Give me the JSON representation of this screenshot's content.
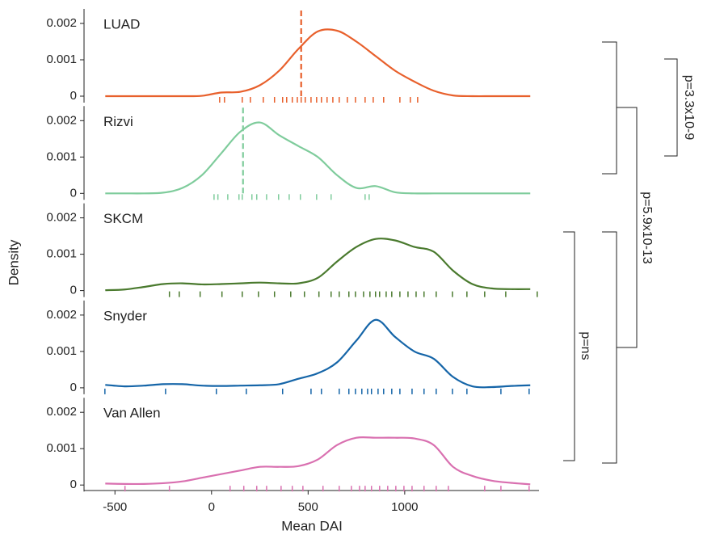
{
  "chart_data": {
    "type": "density",
    "xlabel": "Mean DAI",
    "ylabel": "Density",
    "x": [
      -550,
      -450,
      -350,
      -250,
      -150,
      -50,
      50,
      150,
      250,
      350,
      450,
      550,
      650,
      750,
      850,
      950,
      1050,
      1150,
      1250,
      1350,
      1450,
      1550,
      1650
    ],
    "xlim": [
      -660,
      1695
    ],
    "xticks": [
      -500,
      0,
      500,
      1000
    ],
    "ylim": [
      0,
      0.0024
    ],
    "yticks": [
      0,
      0.001,
      0.002
    ],
    "series": [
      {
        "name": "LUAD",
        "color": "#e8602c",
        "values": [
          0,
          0,
          0,
          0,
          0,
          1e-05,
          0.0001,
          0.00012,
          0.0003,
          0.0007,
          0.0013,
          0.00178,
          0.0018,
          0.0015,
          0.0011,
          0.0007,
          0.0004,
          0.00015,
          2e-05,
          0,
          0,
          0,
          0
        ],
        "median": 464,
        "rug": [
          42,
          67,
          159,
          201,
          268,
          326,
          368,
          389,
          418,
          444,
          464,
          485,
          515,
          544,
          569,
          598,
          628,
          661,
          703,
          745,
          795,
          837,
          891,
          975,
          1029,
          1067
        ]
      },
      {
        "name": "Rizvi",
        "color": "#7fcc9c",
        "values": [
          0,
          0,
          0,
          2e-05,
          0.00015,
          0.0005,
          0.0011,
          0.0017,
          0.00195,
          0.0016,
          0.0013,
          0.001,
          0.0005,
          0.00015,
          0.0002,
          3e-05,
          0,
          0,
          0,
          0,
          0,
          0,
          0
        ],
        "median": 163,
        "rug": [
          13,
          33,
          84,
          142,
          159,
          209,
          234,
          285,
          347,
          402,
          460,
          544,
          619,
          795,
          816
        ]
      },
      {
        "name": "SKCM",
        "color": "#4a7a2e",
        "values": [
          1e-05,
          3e-05,
          0.0001,
          0.00018,
          0.0002,
          0.00017,
          0.00018,
          0.0002,
          0.00022,
          0.0002,
          0.0002,
          0.00035,
          0.0008,
          0.0012,
          0.00142,
          0.00138,
          0.0012,
          0.00107,
          0.00055,
          0.00018,
          6e-05,
          4e-05,
          4e-05
        ],
        "rug": [
          -218,
          -167,
          -59,
          54,
          159,
          243,
          326,
          410,
          481,
          556,
          619,
          661,
          711,
          745,
          787,
          820,
          849,
          870,
          904,
          933,
          975,
          1017,
          1059,
          1100,
          1163,
          1247,
          1322,
          1414,
          1523,
          1686
        ]
      },
      {
        "name": "Snyder",
        "color": "#1565a8",
        "values": [
          8e-05,
          4e-05,
          6e-05,
          0.0001,
          0.0001,
          6e-05,
          5e-05,
          6e-05,
          7e-05,
          0.0001,
          0.00025,
          0.0004,
          0.0007,
          0.0013,
          0.00187,
          0.0014,
          0.001,
          0.0008,
          0.0003,
          4e-05,
          2e-05,
          5e-05,
          7e-05
        ],
        "rug": [
          -552,
          -238,
          25,
          180,
          368,
          515,
          569,
          661,
          711,
          745,
          778,
          808,
          828,
          862,
          891,
          933,
          975,
          1038,
          1100,
          1163,
          1247,
          1322,
          1498,
          1644
        ]
      },
      {
        "name": "Van Allen",
        "color": "#d970b0",
        "values": [
          4e-05,
          3e-05,
          3e-05,
          5e-05,
          0.0001,
          0.0002,
          0.0003,
          0.0004,
          0.0005,
          0.0005,
          0.00052,
          0.0007,
          0.0011,
          0.0013,
          0.0013,
          0.0013,
          0.00128,
          0.0011,
          0.0005,
          0.00025,
          0.00012,
          6e-05,
          2e-05
        ],
        "rug": [
          -448,
          -218,
          96,
          167,
          234,
          285,
          360,
          418,
          473,
          577,
          661,
          724,
          766,
          795,
          828,
          870,
          912,
          954,
          996,
          1038,
          1100,
          1163,
          1226,
          1414,
          1498,
          1644
        ]
      }
    ],
    "annotations": [
      "p=3.3x10-9",
      "p=5.9x10-13",
      "p=ns"
    ]
  }
}
